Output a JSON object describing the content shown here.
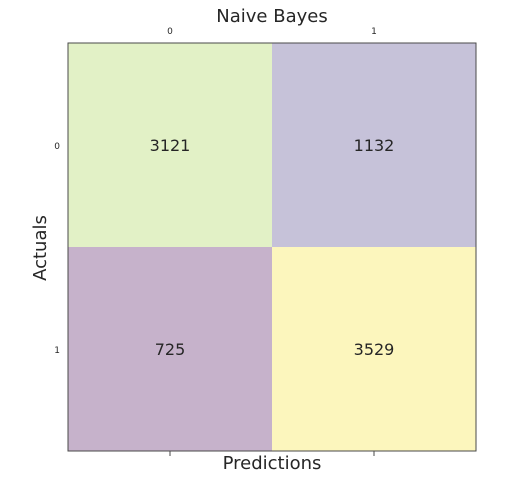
{
  "chart_data": {
    "type": "heatmap",
    "title": "Naive Bayes",
    "xlabel": "Predictions",
    "ylabel": "Actuals",
    "x_categories": [
      "0",
      "1"
    ],
    "y_categories": [
      "0",
      "1"
    ],
    "values": [
      [
        3121,
        1132
      ],
      [
        725,
        3529
      ]
    ],
    "cell_colors": [
      [
        "#e2f1c6",
        "#c6c2d9"
      ],
      [
        "#c6b2cb",
        "#fcf6bd"
      ]
    ],
    "grid": false,
    "legend": "none"
  }
}
